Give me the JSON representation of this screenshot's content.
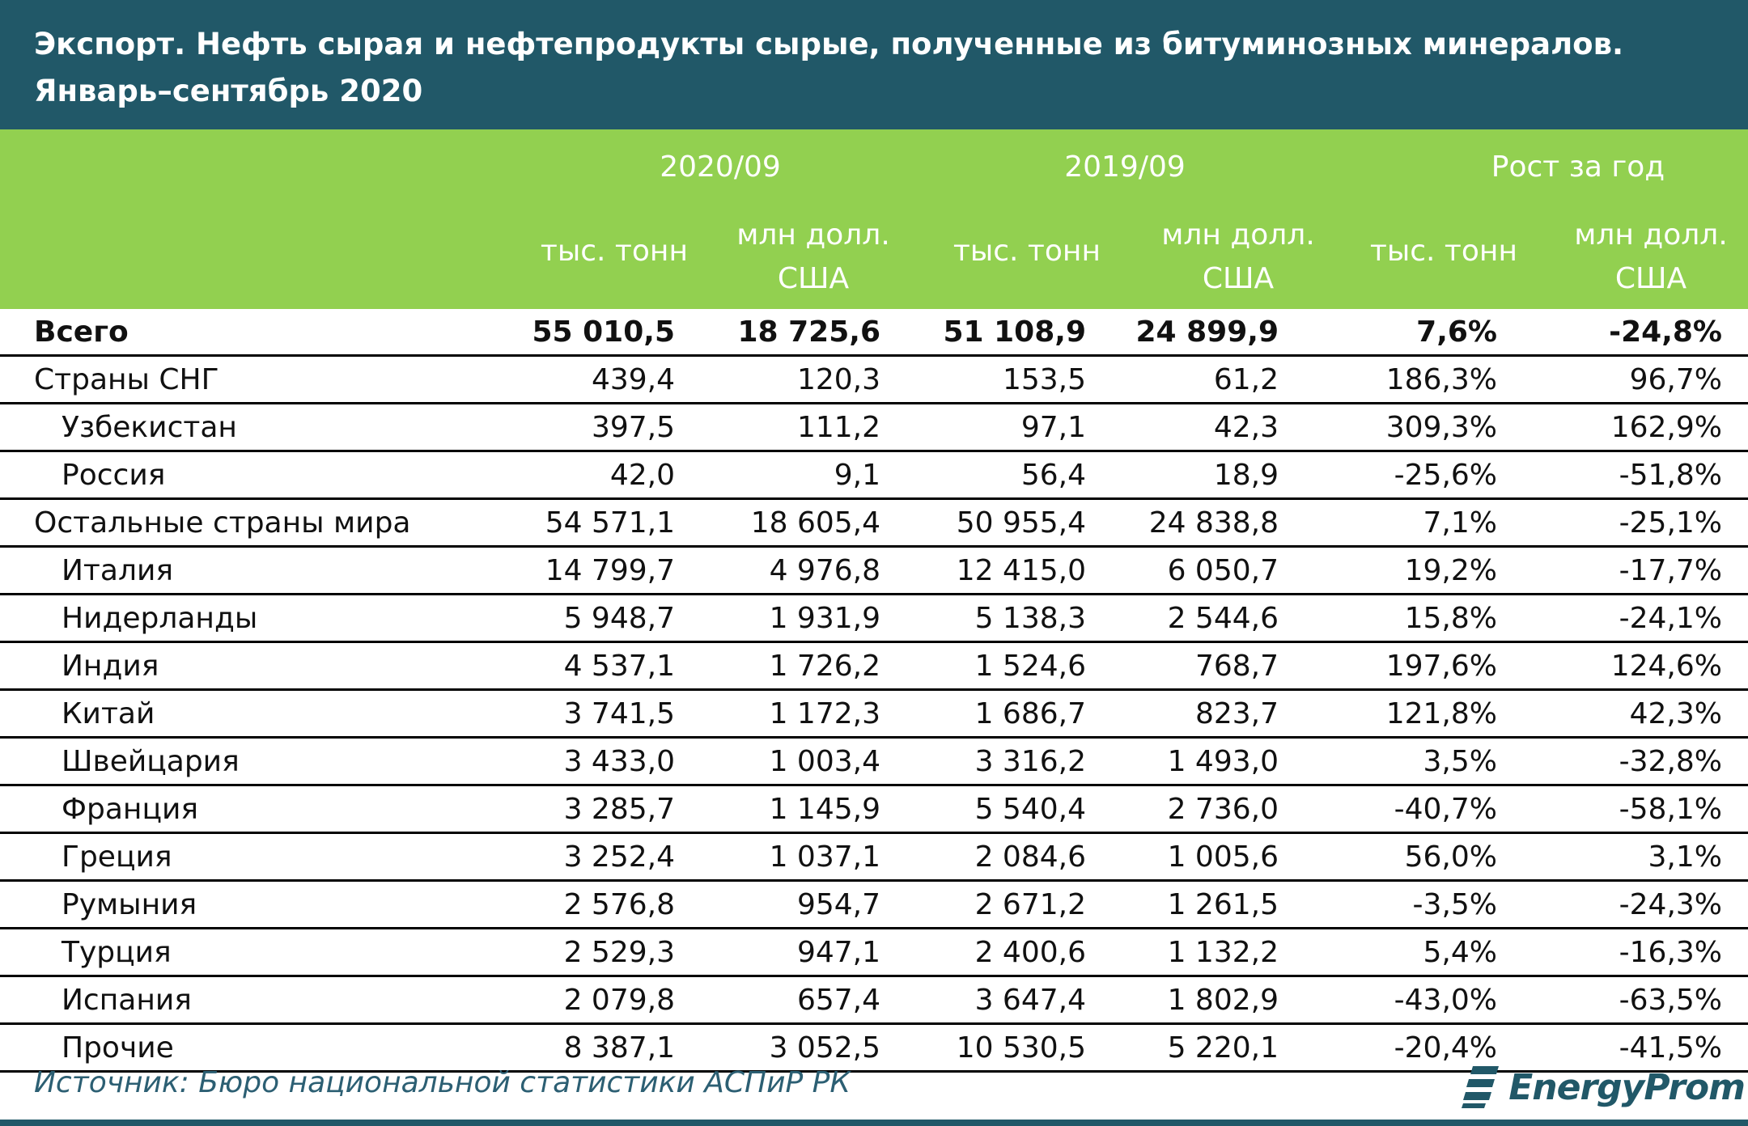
{
  "title": {
    "line1": "Экспорт. Нефть сырая и нефтепродукты сырые, полученные из битуминозных минералов.",
    "line2": "Январь–сентябрь 2020"
  },
  "header": {
    "groups": [
      "2020/09",
      "2019/09",
      "Рост за год"
    ],
    "unit_tonnes": "тыс. тонн",
    "unit_usd_line1": "млн долл.",
    "unit_usd_line2": "США"
  },
  "rows": [
    {
      "name": "Всего",
      "level": 0,
      "bold": true,
      "t2020": "55 010,5",
      "u2020": "18 725,6",
      "t2019": "51 108,9",
      "u2019": "24 899,9",
      "gt": "7,6%",
      "gu": "-24,8%"
    },
    {
      "name": "Страны СНГ",
      "level": 0,
      "bold": false,
      "t2020": "439,4",
      "u2020": "120,3",
      "t2019": "153,5",
      "u2019": "61,2",
      "gt": "186,3%",
      "gu": "96,7%"
    },
    {
      "name": "Узбекистан",
      "level": 1,
      "bold": false,
      "t2020": "397,5",
      "u2020": "111,2",
      "t2019": "97,1",
      "u2019": "42,3",
      "gt": "309,3%",
      "gu": "162,9%"
    },
    {
      "name": "Россия",
      "level": 1,
      "bold": false,
      "t2020": "42,0",
      "u2020": "9,1",
      "t2019": "56,4",
      "u2019": "18,9",
      "gt": "-25,6%",
      "gu": "-51,8%"
    },
    {
      "name": "Остальные страны мира",
      "level": 0,
      "bold": false,
      "t2020": "54 571,1",
      "u2020": "18 605,4",
      "t2019": "50 955,4",
      "u2019": "24 838,8",
      "gt": "7,1%",
      "gu": "-25,1%"
    },
    {
      "name": "Италия",
      "level": 1,
      "bold": false,
      "t2020": "14 799,7",
      "u2020": "4 976,8",
      "t2019": "12 415,0",
      "u2019": "6 050,7",
      "gt": "19,2%",
      "gu": "-17,7%"
    },
    {
      "name": "Нидерланды",
      "level": 1,
      "bold": false,
      "t2020": "5 948,7",
      "u2020": "1 931,9",
      "t2019": "5 138,3",
      "u2019": "2 544,6",
      "gt": "15,8%",
      "gu": "-24,1%"
    },
    {
      "name": "Индия",
      "level": 1,
      "bold": false,
      "t2020": "4 537,1",
      "u2020": "1 726,2",
      "t2019": "1 524,6",
      "u2019": "768,7",
      "gt": "197,6%",
      "gu": "124,6%"
    },
    {
      "name": "Китай",
      "level": 1,
      "bold": false,
      "t2020": "3 741,5",
      "u2020": "1 172,3",
      "t2019": "1 686,7",
      "u2019": "823,7",
      "gt": "121,8%",
      "gu": "42,3%"
    },
    {
      "name": "Швейцария",
      "level": 1,
      "bold": false,
      "t2020": "3 433,0",
      "u2020": "1 003,4",
      "t2019": "3 316,2",
      "u2019": "1 493,0",
      "gt": "3,5%",
      "gu": "-32,8%"
    },
    {
      "name": "Франция",
      "level": 1,
      "bold": false,
      "t2020": "3 285,7",
      "u2020": "1 145,9",
      "t2019": "5 540,4",
      "u2019": "2 736,0",
      "gt": "-40,7%",
      "gu": "-58,1%"
    },
    {
      "name": "Греция",
      "level": 1,
      "bold": false,
      "t2020": "3 252,4",
      "u2020": "1 037,1",
      "t2019": "2 084,6",
      "u2019": "1 005,6",
      "gt": "56,0%",
      "gu": "3,1%"
    },
    {
      "name": "Румыния",
      "level": 1,
      "bold": false,
      "t2020": "2 576,8",
      "u2020": "954,7",
      "t2019": "2 671,2",
      "u2019": "1 261,5",
      "gt": "-3,5%",
      "gu": "-24,3%"
    },
    {
      "name": "Турция",
      "level": 1,
      "bold": false,
      "t2020": "2 529,3",
      "u2020": "947,1",
      "t2019": "2 400,6",
      "u2019": "1 132,2",
      "gt": "5,4%",
      "gu": "-16,3%"
    },
    {
      "name": "Испания",
      "level": 1,
      "bold": false,
      "t2020": "2 079,8",
      "u2020": "657,4",
      "t2019": "3 647,4",
      "u2019": "1 802,9",
      "gt": "-43,0%",
      "gu": "-63,5%"
    },
    {
      "name": "Прочие",
      "level": 1,
      "bold": false,
      "t2020": "8 387,1",
      "u2020": "3 052,5",
      "t2019": "10 530,5",
      "u2019": "5 220,1",
      "gt": "-20,4%",
      "gu": "-41,5%"
    }
  ],
  "footer": {
    "source": "Источник: Бюро национальной статистики АСПиР РК",
    "logo_text": "EnergyProm",
    "logo_icon": "energyprom-logo-icon"
  },
  "colors": {
    "title_bg": "#215868",
    "header_bg": "#92d050",
    "source_text": "#2c5f73"
  }
}
